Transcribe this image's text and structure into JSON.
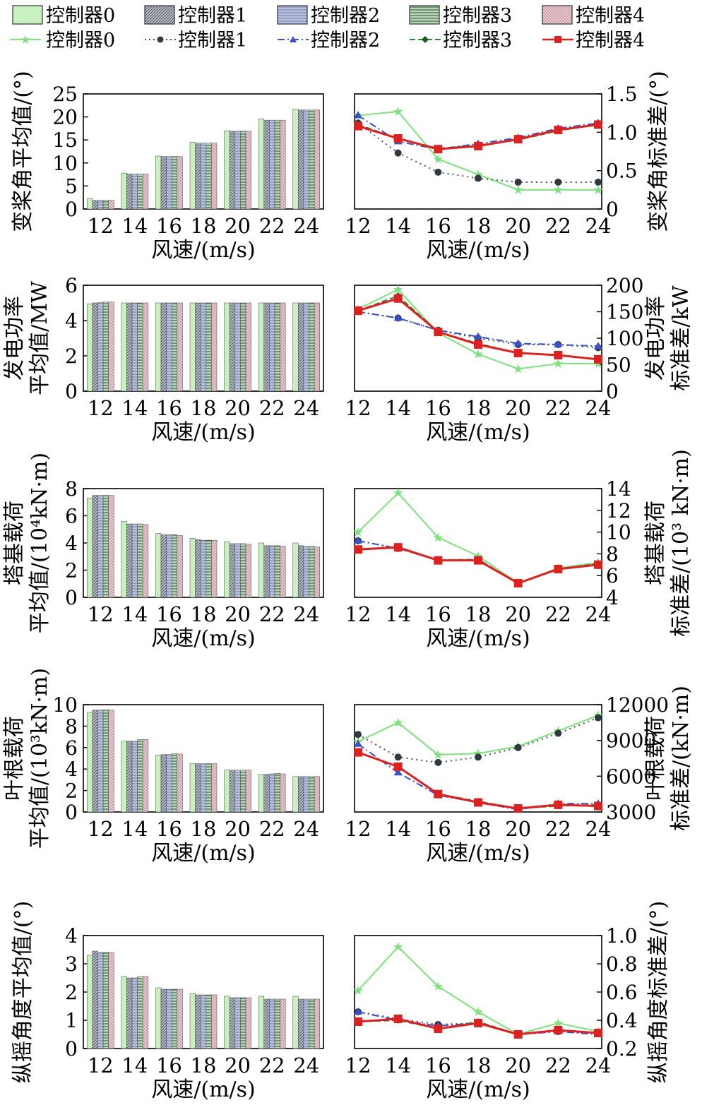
{
  "legend": {
    "bar_entries": [
      "控制器0",
      "控制器1",
      "控制器2",
      "控制器3",
      "控制器4"
    ],
    "line_entries": [
      "控制器0",
      "控制器1",
      "控制器2",
      "控制器3",
      "控制器4"
    ]
  },
  "chart_data": [
    {
      "type": "bar",
      "id": "pitch-mean",
      "xlabel": "风速/(m/s)",
      "ylabel": [
        "变桨角平均值/(°)"
      ],
      "categories": [
        "12",
        "14",
        "16",
        "18",
        "20",
        "22",
        "24"
      ],
      "ylim": [
        0,
        25
      ],
      "yticks": [
        0,
        5,
        10,
        15,
        20,
        25
      ],
      "series": [
        {
          "name": "控制器0",
          "values": [
            2.3,
            7.8,
            11.5,
            14.5,
            17.0,
            19.6,
            21.7
          ]
        },
        {
          "name": "控制器1",
          "values": [
            1.9,
            7.6,
            11.4,
            14.3,
            16.9,
            19.3,
            21.5
          ]
        },
        {
          "name": "控制器2",
          "values": [
            1.9,
            7.6,
            11.4,
            14.3,
            16.9,
            19.3,
            21.5
          ]
        },
        {
          "name": "控制器3",
          "values": [
            1.9,
            7.6,
            11.4,
            14.3,
            16.9,
            19.3,
            21.5
          ]
        },
        {
          "name": "控制器4",
          "values": [
            1.9,
            7.6,
            11.4,
            14.3,
            16.9,
            19.3,
            21.5
          ]
        }
      ]
    },
    {
      "type": "line",
      "id": "pitch-std",
      "xlabel": "风速/(m/s)",
      "ylabel": [
        "变桨角标准差/(°)"
      ],
      "x": [
        "12",
        "14",
        "16",
        "18",
        "20",
        "22",
        "24"
      ],
      "ylim": [
        0,
        1.5
      ],
      "yticks": [
        "0",
        "0.5",
        "1.0",
        "1.5"
      ],
      "series": [
        {
          "name": "控制器0",
          "values": [
            1.22,
            1.27,
            0.65,
            0.45,
            0.25,
            0.25,
            0.25
          ]
        },
        {
          "name": "控制器1",
          "values": [
            1.12,
            0.73,
            0.48,
            0.4,
            0.35,
            0.35,
            0.35
          ]
        },
        {
          "name": "控制器2",
          "values": [
            1.22,
            0.88,
            0.78,
            0.85,
            0.93,
            1.05,
            1.12
          ]
        },
        {
          "name": "控制器3",
          "values": [
            1.1,
            0.92,
            0.79,
            0.83,
            0.9,
            1.02,
            1.1
          ]
        },
        {
          "name": "控制器4",
          "values": [
            1.08,
            0.92,
            0.78,
            0.82,
            0.91,
            1.03,
            1.1
          ]
        }
      ]
    },
    {
      "type": "bar",
      "id": "power-mean",
      "xlabel": "风速/(m/s)",
      "ylabel": [
        "发电功率",
        "平均值/MW"
      ],
      "categories": [
        "12",
        "14",
        "16",
        "18",
        "20",
        "22",
        "24"
      ],
      "ylim": [
        0,
        6
      ],
      "yticks": [
        0,
        2,
        4,
        6
      ],
      "series": [
        {
          "name": "控制器0",
          "values": [
            4.95,
            5.0,
            5.0,
            5.0,
            5.0,
            5.0,
            5.0
          ]
        },
        {
          "name": "控制器1",
          "values": [
            5.0,
            5.0,
            5.0,
            5.0,
            5.0,
            5.0,
            5.0
          ]
        },
        {
          "name": "控制器2",
          "values": [
            5.02,
            5.0,
            5.0,
            5.0,
            5.0,
            5.0,
            5.0
          ]
        },
        {
          "name": "控制器3",
          "values": [
            5.05,
            5.0,
            5.0,
            5.0,
            5.0,
            5.0,
            5.0
          ]
        },
        {
          "name": "控制器4",
          "values": [
            5.05,
            5.0,
            5.0,
            5.0,
            5.0,
            5.0,
            5.0
          ]
        }
      ]
    },
    {
      "type": "line",
      "id": "power-std",
      "xlabel": "风速/(m/s)",
      "ylabel": [
        "发电功率",
        "标准差/kW"
      ],
      "x": [
        "12",
        "14",
        "16",
        "18",
        "20",
        "22",
        "24"
      ],
      "ylim": [
        0,
        200
      ],
      "yticks": [
        "0",
        "50",
        "100",
        "150",
        "200"
      ],
      "series": [
        {
          "name": "控制器0",
          "values": [
            155,
            192,
            110,
            70,
            42,
            52,
            52
          ]
        },
        {
          "name": "控制器1",
          "values": [
            150,
            138,
            115,
            100,
            88,
            88,
            82
          ]
        },
        {
          "name": "控制器2",
          "values": [
            150,
            138,
            115,
            103,
            90,
            88,
            85
          ]
        },
        {
          "name": "控制器3",
          "values": [
            152,
            180,
            112,
            90,
            72,
            68,
            60
          ]
        },
        {
          "name": "控制器4",
          "values": [
            152,
            175,
            112,
            88,
            72,
            68,
            60
          ]
        }
      ]
    },
    {
      "type": "bar",
      "id": "tower-mean",
      "xlabel": "风速/(m/s)",
      "ylabel": [
        "塔基载荷",
        "平均值/(10⁴kN·m)"
      ],
      "categories": [
        "12",
        "14",
        "16",
        "18",
        "20",
        "22",
        "24"
      ],
      "ylim": [
        0,
        8
      ],
      "yticks": [
        0,
        2,
        4,
        6,
        8
      ],
      "series": [
        {
          "name": "控制器0",
          "values": [
            7.3,
            5.6,
            4.7,
            4.35,
            4.1,
            4.0,
            4.0
          ]
        },
        {
          "name": "控制器1",
          "values": [
            7.5,
            5.4,
            4.6,
            4.25,
            3.95,
            3.8,
            3.8
          ]
        },
        {
          "name": "控制器2",
          "values": [
            7.5,
            5.4,
            4.6,
            4.2,
            3.95,
            3.8,
            3.75
          ]
        },
        {
          "name": "控制器3",
          "values": [
            7.5,
            5.4,
            4.6,
            4.2,
            3.95,
            3.8,
            3.75
          ]
        },
        {
          "name": "控制器4",
          "values": [
            7.5,
            5.35,
            4.55,
            4.2,
            3.9,
            3.75,
            3.7
          ]
        }
      ]
    },
    {
      "type": "line",
      "id": "tower-std",
      "xlabel": "风速/(m/s)",
      "ylabel": [
        "塔基载荷",
        "标准差/(10³ kN·m)"
      ],
      "x": [
        "12",
        "14",
        "16",
        "18",
        "20",
        "22",
        "24"
      ],
      "ylim": [
        4,
        14
      ],
      "yticks": [
        "4",
        "6",
        "8",
        "10",
        "12",
        "14"
      ],
      "series": [
        {
          "name": "控制器0",
          "values": [
            10.0,
            13.6,
            9.5,
            7.8,
            5.3,
            6.7,
            7.2
          ]
        },
        {
          "name": "控制器1",
          "values": [
            9.2,
            8.5,
            7.4,
            7.4,
            5.3,
            6.6,
            7.0
          ]
        },
        {
          "name": "控制器2",
          "values": [
            9.2,
            8.5,
            7.4,
            7.4,
            5.3,
            6.6,
            7.0
          ]
        },
        {
          "name": "控制器3",
          "values": [
            8.4,
            8.6,
            7.4,
            7.5,
            5.3,
            6.6,
            7.1
          ]
        },
        {
          "name": "控制器4",
          "values": [
            8.4,
            8.6,
            7.4,
            7.4,
            5.3,
            6.6,
            7.0
          ]
        }
      ]
    },
    {
      "type": "bar",
      "id": "blade-mean",
      "xlabel": "风速/(m/s)",
      "ylabel": [
        "叶根载荷",
        "平均值/(10³kN·m)"
      ],
      "categories": [
        "12",
        "14",
        "16",
        "18",
        "20",
        "22",
        "24"
      ],
      "ylim": [
        0,
        10
      ],
      "yticks": [
        0,
        2,
        4,
        6,
        8,
        10
      ],
      "series": [
        {
          "name": "控制器0",
          "values": [
            9.3,
            6.6,
            5.3,
            4.5,
            3.9,
            3.5,
            3.3
          ]
        },
        {
          "name": "控制器1",
          "values": [
            9.5,
            6.6,
            5.35,
            4.5,
            3.9,
            3.5,
            3.3
          ]
        },
        {
          "name": "控制器2",
          "values": [
            9.5,
            6.6,
            5.35,
            4.5,
            3.9,
            3.55,
            3.3
          ]
        },
        {
          "name": "控制器3",
          "values": [
            9.5,
            6.75,
            5.45,
            4.5,
            3.9,
            3.6,
            3.3
          ]
        },
        {
          "name": "控制器4",
          "values": [
            9.5,
            6.75,
            5.4,
            4.5,
            3.9,
            3.55,
            3.3
          ]
        }
      ]
    },
    {
      "type": "line",
      "id": "blade-std",
      "xlabel": "风速/(m/s)",
      "ylabel": [
        "叶根载荷",
        "标准差/(kN·m)"
      ],
      "x": [
        "12",
        "14",
        "16",
        "18",
        "20",
        "22",
        "24"
      ],
      "ylim": [
        3000,
        12000
      ],
      "yticks": [
        "3000",
        "6000",
        "9000",
        "12000"
      ],
      "series": [
        {
          "name": "控制器0",
          "values": [
            8900,
            10500,
            7800,
            7900,
            8500,
            9800,
            11100
          ]
        },
        {
          "name": "控制器1",
          "values": [
            9500,
            7600,
            7150,
            7600,
            8400,
            9600,
            10900
          ]
        },
        {
          "name": "控制器2",
          "values": [
            8700,
            6300,
            4400,
            3800,
            3200,
            3700,
            3700
          ]
        },
        {
          "name": "控制器3",
          "values": [
            8000,
            6800,
            4500,
            3900,
            3300,
            3500,
            3600
          ]
        },
        {
          "name": "控制器4",
          "values": [
            8000,
            6800,
            4500,
            3800,
            3300,
            3600,
            3500
          ]
        }
      ]
    },
    {
      "type": "bar",
      "id": "roll-mean",
      "xlabel": "风速/(m/s)",
      "ylabel": [
        "纵摇角度平均值/(°)"
      ],
      "categories": [
        "12",
        "14",
        "16",
        "18",
        "20",
        "22",
        "24"
      ],
      "ylim": [
        0,
        4
      ],
      "yticks": [
        0,
        1,
        2,
        3,
        4
      ],
      "series": [
        {
          "name": "控制器0",
          "values": [
            3.3,
            2.55,
            2.15,
            1.95,
            1.85,
            1.85,
            1.85
          ]
        },
        {
          "name": "控制器1",
          "values": [
            3.45,
            2.5,
            2.1,
            1.9,
            1.8,
            1.75,
            1.75
          ]
        },
        {
          "name": "控制器2",
          "values": [
            3.4,
            2.5,
            2.1,
            1.9,
            1.8,
            1.75,
            1.75
          ]
        },
        {
          "name": "控制器3",
          "values": [
            3.4,
            2.55,
            2.1,
            1.9,
            1.8,
            1.75,
            1.75
          ]
        },
        {
          "name": "控制器4",
          "values": [
            3.4,
            2.55,
            2.1,
            1.9,
            1.8,
            1.75,
            1.75
          ]
        }
      ]
    },
    {
      "type": "line",
      "id": "roll-std",
      "xlabel": "风速/(m/s)",
      "ylabel": [
        "纵摇角度标准差/(°)"
      ],
      "x": [
        "12",
        "14",
        "16",
        "18",
        "20",
        "22",
        "24"
      ],
      "ylim": [
        0.2,
        1.0
      ],
      "yticks": [
        "0.2",
        "0.4",
        "0.6",
        "0.8",
        "1.0"
      ],
      "series": [
        {
          "name": "控制器0",
          "values": [
            0.61,
            0.92,
            0.64,
            0.46,
            0.3,
            0.38,
            0.32
          ]
        },
        {
          "name": "控制器1",
          "values": [
            0.46,
            0.41,
            0.37,
            0.38,
            0.3,
            0.32,
            0.31
          ]
        },
        {
          "name": "控制器2",
          "values": [
            0.46,
            0.4,
            0.36,
            0.38,
            0.3,
            0.32,
            0.3
          ]
        },
        {
          "name": "控制器3",
          "values": [
            0.39,
            0.4,
            0.34,
            0.39,
            0.3,
            0.33,
            0.31
          ]
        },
        {
          "name": "控制器4",
          "values": [
            0.39,
            0.41,
            0.34,
            0.38,
            0.3,
            0.33,
            0.31
          ]
        }
      ]
    }
  ],
  "colors": {
    "bar_fills": [
      "#c8f0c0",
      "#b4bcc8",
      "#b4c0e8",
      "#b2dcb4",
      "#f2c6d0"
    ],
    "line_colors": [
      "#7ee07e",
      "#505050",
      "#3850c8",
      "#2a8a3a",
      "#dd2020"
    ]
  }
}
